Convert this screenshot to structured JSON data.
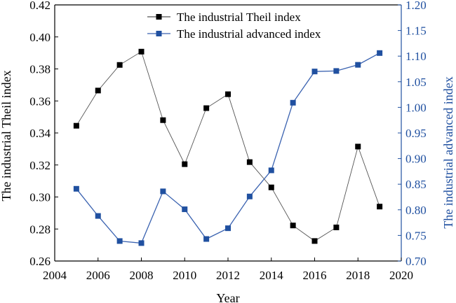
{
  "chart_data": {
    "type": "line",
    "xlabel": "Year",
    "ylabel_left": "The industrial Theil index",
    "ylabel_right": "The industrial advanced index",
    "x_range": [
      2004,
      2020
    ],
    "x_ticks": [
      "2004",
      "2006",
      "2008",
      "2010",
      "2012",
      "2014",
      "2016",
      "2018",
      "2020"
    ],
    "y_left_range": [
      0.26,
      0.42
    ],
    "y_left_ticks": [
      "0.26",
      "0.28",
      "0.30",
      "0.32",
      "0.34",
      "0.36",
      "0.38",
      "0.40",
      "0.42"
    ],
    "y_right_range": [
      0.7,
      1.2
    ],
    "y_right_ticks": [
      "0.70",
      "0.75",
      "0.80",
      "0.85",
      "0.90",
      "0.95",
      "1.00",
      "1.05",
      "1.10",
      "1.15",
      "1.20"
    ],
    "grid": false,
    "legend_position": "top-center",
    "series": [
      {
        "name": "The industrial Theil index",
        "axis": "left",
        "color": "#000000",
        "line_color": "#555555",
        "marker": "square",
        "x": [
          2005,
          2006,
          2007,
          2008,
          2009,
          2010,
          2011,
          2012,
          2013,
          2014,
          2015,
          2016,
          2017,
          2018,
          2019
        ],
        "y": [
          0.3445,
          0.3665,
          0.3825,
          0.3908,
          0.348,
          0.3205,
          0.3555,
          0.3642,
          0.3218,
          0.306,
          0.2822,
          0.2725,
          0.281,
          0.3315,
          0.294
        ]
      },
      {
        "name": "The industrial advanced index",
        "axis": "right",
        "color": "#2050a0",
        "line_color": "#3a62b0",
        "marker": "square",
        "x": [
          2005,
          2006,
          2007,
          2008,
          2009,
          2010,
          2011,
          2012,
          2013,
          2014,
          2015,
          2016,
          2017,
          2018,
          2019
        ],
        "y": [
          0.841,
          0.788,
          0.739,
          0.735,
          0.836,
          0.801,
          0.743,
          0.764,
          0.826,
          0.877,
          1.009,
          1.07,
          1.071,
          1.083,
          1.106
        ]
      }
    ]
  }
}
